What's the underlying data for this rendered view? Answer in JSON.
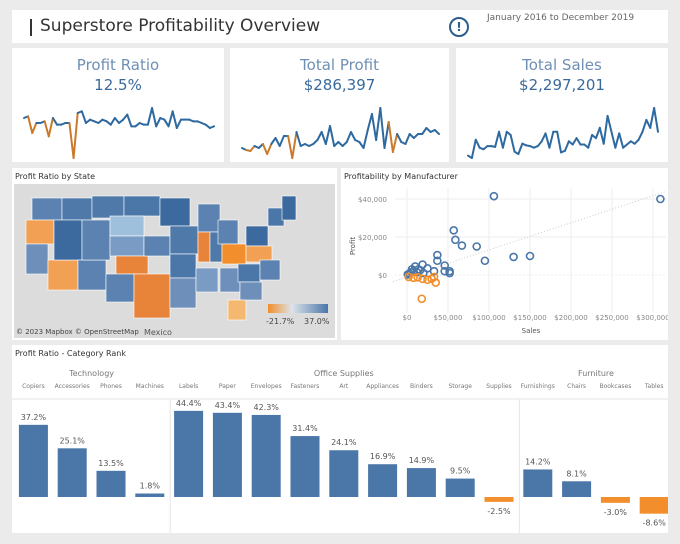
{
  "header": {
    "title": "Superstore Profitability Overview",
    "info_icon": "exclamation-circle-icon",
    "date_range": "January 2016 to December 2019"
  },
  "colors": {
    "positive": "#4a76a8",
    "negative": "#f28e2b",
    "kpi_label": "#6f8fb5"
  },
  "kpis": [
    {
      "label": "Profit Ratio",
      "value": "12.5%"
    },
    {
      "label": "Total Profit",
      "value": "$286,397"
    },
    {
      "label": "Total Sales",
      "value": "$2,297,201"
    }
  ],
  "map": {
    "title": "Profit Ratio by State",
    "legend_min": "-21.7%",
    "legend_max": "37.0%",
    "attribution": "© 2023 Mapbox © OpenStreetMap",
    "label_mexico": "Mexico"
  },
  "chart_data": [
    {
      "type": "line",
      "title": "Profit Ratio",
      "series": [
        {
          "values": [
            14,
            15,
            5,
            11,
            11,
            12,
            3,
            14,
            10,
            10,
            11,
            11,
            -10,
            17,
            18,
            11,
            13,
            12,
            11,
            13,
            12,
            10,
            14,
            11,
            13,
            16,
            9,
            9,
            11,
            10,
            10,
            20,
            9,
            14,
            13,
            9,
            18,
            8,
            13,
            13,
            13,
            12,
            12,
            11,
            10,
            8,
            9
          ]
        }
      ]
    },
    {
      "type": "line",
      "title": "Total Profit",
      "series": [
        {
          "values": [
            2,
            1,
            0.5,
            3,
            2,
            4,
            -1,
            4,
            7,
            3,
            8,
            8,
            -3,
            10,
            3,
            4,
            3,
            4,
            6,
            10,
            4,
            13,
            3,
            5,
            3,
            5,
            10,
            6,
            5,
            2,
            11,
            19,
            6,
            22,
            2,
            15,
            0,
            9,
            5,
            4,
            9,
            7,
            9,
            9,
            12,
            10,
            11,
            9
          ]
        }
      ]
    },
    {
      "type": "line",
      "title": "Total Sales",
      "series": [
        {
          "values": [
            10,
            7,
            30,
            20,
            18,
            22,
            22,
            21,
            40,
            20,
            40,
            36,
            15,
            12,
            25,
            23,
            22,
            20,
            22,
            28,
            38,
            20,
            40,
            40,
            14,
            16,
            28,
            24,
            32,
            24,
            24,
            20,
            36,
            32,
            45,
            25,
            60,
            40,
            20,
            38,
            20,
            24,
            28,
            25,
            30,
            40,
            55,
            45,
            70,
            40
          ]
        }
      ]
    },
    {
      "type": "scatter",
      "title": "Profitability by Manufacturer",
      "xlabel": "Sales",
      "ylabel": "Profit",
      "xlim": [
        -20000,
        325000
      ],
      "ylim": [
        -15000,
        45000
      ],
      "x_ticks": [
        "$0",
        "$50,000",
        "$100,000",
        "$150,000",
        "$200,000",
        "$250,000",
        "$300,000"
      ],
      "y_ticks": [
        "$0",
        "$20,000",
        "$40,000"
      ],
      "trend_line": true,
      "points": [
        [
          106000,
          41500
        ],
        [
          309000,
          40000
        ],
        [
          57000,
          23500
        ],
        [
          59000,
          18500
        ],
        [
          67000,
          15500
        ],
        [
          85000,
          15000
        ],
        [
          37000,
          10500
        ],
        [
          37000,
          7500
        ],
        [
          95000,
          7500
        ],
        [
          130000,
          9500
        ],
        [
          150000,
          10000
        ],
        [
          46000,
          5000
        ],
        [
          46000,
          2000
        ],
        [
          52000,
          2000
        ],
        [
          52000,
          1000
        ],
        [
          33000,
          2000
        ],
        [
          25000,
          3500
        ],
        [
          19000,
          5500
        ],
        [
          10000,
          4500
        ],
        [
          14000,
          3000
        ],
        [
          8000,
          2000
        ],
        [
          5000,
          1500
        ],
        [
          3000,
          800
        ],
        [
          1000,
          300
        ],
        [
          12000,
          1500
        ],
        [
          16000,
          2500
        ],
        [
          6000,
          3000
        ],
        [
          20000,
          1000
        ],
        [
          2000,
          -1000
        ],
        [
          8000,
          -1500
        ],
        [
          13000,
          -1200
        ],
        [
          19000,
          -2000
        ],
        [
          25000,
          -2500
        ],
        [
          30000,
          -2000
        ],
        [
          33000,
          -1000
        ],
        [
          35000,
          -4000
        ],
        [
          18000,
          -12500
        ]
      ]
    },
    {
      "type": "bar",
      "title": "Profit Ratio - Category Rank",
      "groups": [
        {
          "name": "Technology",
          "categories": [
            "Copiers",
            "Accessories",
            "Phones",
            "Machines"
          ],
          "values": [
            37.2,
            25.1,
            13.5,
            1.8
          ]
        },
        {
          "name": "Office Supplies",
          "categories": [
            "Labels",
            "Paper",
            "Envelopes",
            "Fasteners",
            "Art",
            "Appliances",
            "Binders",
            "Storage",
            "Supplies"
          ],
          "values": [
            44.4,
            43.4,
            42.3,
            31.4,
            24.1,
            16.9,
            14.9,
            9.5,
            -2.5
          ]
        },
        {
          "name": "Furniture",
          "categories": [
            "Furnishings",
            "Chairs",
            "Bookcases",
            "Tables"
          ],
          "values": [
            14.2,
            8.1,
            -3.0,
            -8.6
          ]
        }
      ],
      "labels": [
        "37.2%",
        "25.1%",
        "13.5%",
        "1.8%",
        "44.4%",
        "43.4%",
        "42.3%",
        "31.4%",
        "24.1%",
        "16.9%",
        "14.9%",
        "9.5%",
        "-2.5%",
        "14.2%",
        "8.1%",
        "-3.0%",
        "-8.6%"
      ]
    }
  ]
}
